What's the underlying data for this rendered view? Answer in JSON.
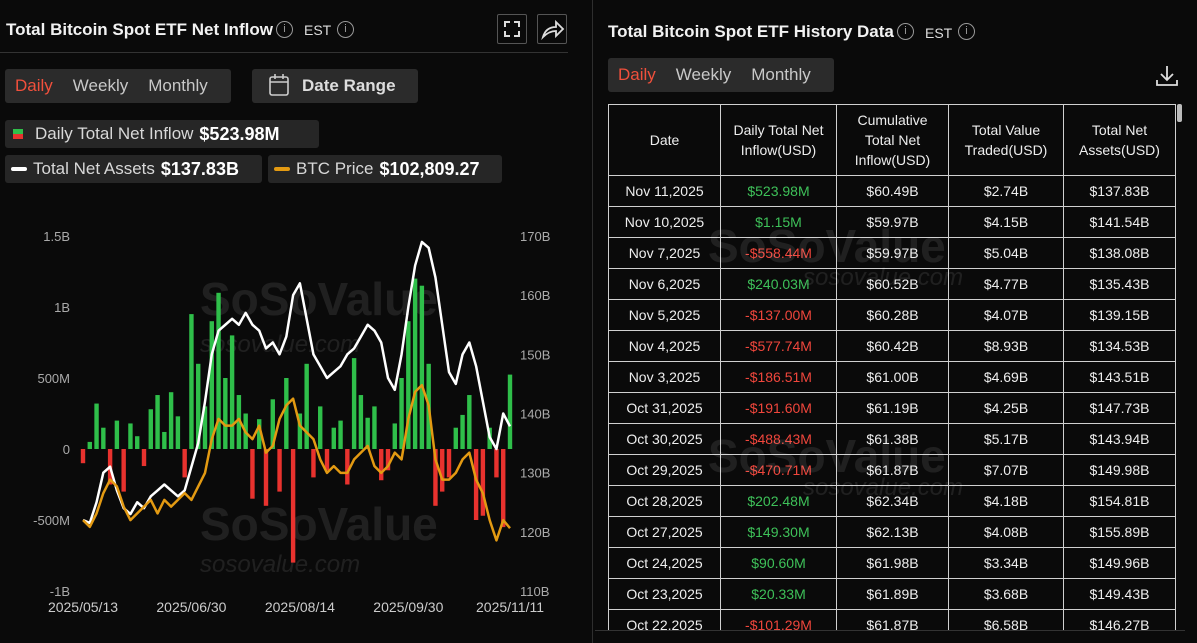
{
  "left_header": {
    "title": "Total Bitcoin Spot ETF Net Inflow",
    "timezone": "EST"
  },
  "left_tabs": [
    "Daily",
    "Weekly",
    "Monthly"
  ],
  "date_range": "Date Range",
  "watermark": {
    "brand": "SoSoValue",
    "url": "sosovalue.com"
  },
  "chart_data": {
    "type": "bar-line",
    "categories": [
      "2025/05/13",
      null,
      null,
      null,
      null,
      null,
      null,
      null,
      null,
      null,
      null,
      null,
      null,
      null,
      null,
      null,
      "2025/06/30",
      null,
      null,
      null,
      null,
      null,
      null,
      null,
      null,
      null,
      null,
      null,
      null,
      null,
      null,
      null,
      "2025/08/14",
      null,
      null,
      null,
      null,
      null,
      null,
      null,
      null,
      null,
      null,
      null,
      null,
      null,
      null,
      null,
      "2025/09/30",
      null,
      null,
      null,
      null,
      null,
      null,
      null,
      null,
      null,
      null,
      null,
      null,
      null,
      null,
      "2025/11/11"
    ],
    "series": [
      {
        "name": "Daily Total Net Inflow",
        "kind": "bar",
        "axis": "y",
        "color": "#2fbf4a",
        "negative_color": "#e8322e",
        "values": [
          -100,
          50,
          320,
          150,
          -250,
          200,
          -300,
          180,
          90,
          -120,
          280,
          380,
          120,
          400,
          230,
          -200,
          950,
          600,
          300,
          900,
          1100,
          500,
          800,
          380,
          250,
          -350,
          210,
          -400,
          350,
          -300,
          500,
          -800,
          250,
          600,
          -200,
          300,
          -150,
          150,
          200,
          -250,
          640,
          380,
          220,
          300,
          -220,
          -150,
          180,
          500,
          900,
          1200,
          1150,
          600,
          -400,
          -300,
          -200,
          150,
          240,
          380,
          -500,
          -470,
          150,
          -200,
          -550,
          523.98
        ]
      },
      {
        "name": "Total Net Assets",
        "kind": "line",
        "axis": "y2",
        "color": "#ffffff",
        "values": [
          122,
          121.5,
          125,
          130,
          131,
          127,
          124,
          123,
          125,
          124,
          126,
          127,
          128,
          127,
          126,
          127,
          131,
          135,
          142,
          150,
          154,
          155,
          156,
          155,
          157,
          155,
          154,
          151,
          152,
          150,
          153,
          160,
          162,
          156,
          150,
          148,
          146,
          147,
          148,
          150,
          151,
          153,
          155,
          154,
          152,
          146,
          144,
          150,
          158,
          165,
          169,
          168,
          163,
          155,
          147,
          145,
          150,
          152,
          148,
          142,
          136,
          134,
          140,
          137.83
        ]
      },
      {
        "name": "BTC Price",
        "kind": "line",
        "axis": "y3",
        "color": "#e39a12",
        "values": [
          104000,
          103000,
          105000,
          108000,
          110000,
          109000,
          106000,
          104000,
          105000,
          106000,
          107000,
          105000,
          107000,
          106000,
          107000,
          108000,
          107000,
          109000,
          111000,
          116000,
          119000,
          118000,
          118000,
          119000,
          117000,
          116000,
          118000,
          114000,
          115000,
          119000,
          121000,
          122000,
          118000,
          117000,
          116000,
          113000,
          111000,
          112000,
          111000,
          111000,
          113000,
          114000,
          115000,
          112000,
          111000,
          112000,
          114000,
          113000,
          119000,
          123000,
          124000,
          121000,
          113000,
          110000,
          110000,
          111000,
          113000,
          114000,
          110000,
          108000,
          104000,
          101000,
          104000,
          102809.27
        ]
      }
    ],
    "legend_values": [
      "$523.98M",
      "$137.83B",
      "$102,809.27"
    ],
    "ylim": [
      -1000,
      1500
    ],
    "yticks": [
      {
        "value": -1000,
        "label": "-1B"
      },
      {
        "value": -500,
        "label": "-500M"
      },
      0,
      {
        "value": 500,
        "label": "500M"
      },
      {
        "value": 1000,
        "label": "1B"
      },
      {
        "value": 1500,
        "label": "1.5B"
      }
    ],
    "y2lim": [
      110,
      170
    ],
    "y2ticks": [
      {
        "value": 110,
        "label": "110B"
      },
      {
        "value": 120,
        "label": "120B"
      },
      {
        "value": 130,
        "label": "130B"
      },
      {
        "value": 140,
        "label": "140B"
      },
      {
        "value": 150,
        "label": "150B"
      },
      {
        "value": 160,
        "label": "160B"
      },
      {
        "value": 170,
        "label": "170B"
      }
    ],
    "y3lim": [
      93500,
      146100
    ],
    "grid": false
  },
  "right_header": {
    "title": "Total Bitcoin Spot ETF History Data",
    "timezone": "EST"
  },
  "right_tabs": [
    "Daily",
    "Weekly",
    "Monthly"
  ],
  "table": {
    "positive_color": "#3ec159",
    "negative_color": "#f0463c",
    "columns": [
      "Date",
      "Daily Total Net Inflow(USD)",
      "Cumulative Total Net Inflow(USD)",
      "Total Value Traded(USD)",
      "Total Net Assets(USD)"
    ],
    "rows": [
      [
        "Nov 11,2025",
        "$523.98M",
        "$60.49B",
        "$2.74B",
        "$137.83B"
      ],
      [
        "Nov 10,2025",
        "$1.15M",
        "$59.97B",
        "$4.15B",
        "$141.54B"
      ],
      [
        "Nov 7,2025",
        "-$558.44M",
        "$59.97B",
        "$5.04B",
        "$138.08B"
      ],
      [
        "Nov 6,2025",
        "$240.03M",
        "$60.52B",
        "$4.77B",
        "$135.43B"
      ],
      [
        "Nov 5,2025",
        "-$137.00M",
        "$60.28B",
        "$4.07B",
        "$139.15B"
      ],
      [
        "Nov 4,2025",
        "-$577.74M",
        "$60.42B",
        "$8.93B",
        "$134.53B"
      ],
      [
        "Nov 3,2025",
        "-$186.51M",
        "$61.00B",
        "$4.69B",
        "$143.51B"
      ],
      [
        "Oct 31,2025",
        "-$191.60M",
        "$61.19B",
        "$4.25B",
        "$147.73B"
      ],
      [
        "Oct 30,2025",
        "-$488.43M",
        "$61.38B",
        "$5.17B",
        "$143.94B"
      ],
      [
        "Oct 29,2025",
        "-$470.71M",
        "$61.87B",
        "$7.07B",
        "$149.98B"
      ],
      [
        "Oct 28,2025",
        "$202.48M",
        "$62.34B",
        "$4.18B",
        "$154.81B"
      ],
      [
        "Oct 27,2025",
        "$149.30M",
        "$62.13B",
        "$4.08B",
        "$155.89B"
      ],
      [
        "Oct 24,2025",
        "$90.60M",
        "$61.98B",
        "$3.34B",
        "$149.96B"
      ],
      [
        "Oct 23,2025",
        "$20.33M",
        "$61.89B",
        "$3.68B",
        "$149.43B"
      ],
      [
        "Oct 22,2025",
        "-$101.29M",
        "$61.87B",
        "$6.58B",
        "$146.27B"
      ]
    ]
  }
}
